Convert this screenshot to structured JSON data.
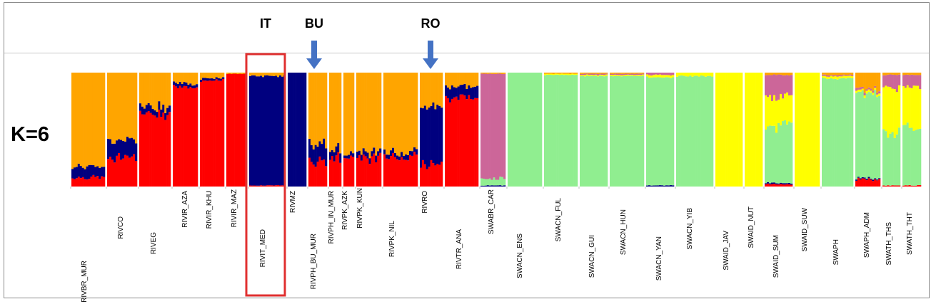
{
  "colors": {
    "orange": "#FFA500",
    "navy": "#00007F",
    "red": "#FF0000",
    "pink": "#CC6699",
    "green": "#90EE90",
    "yellow": "#FFFF00",
    "highlight_box": "#E03030",
    "arrow": "#4472C4"
  },
  "chart_data": {
    "type": "bar",
    "stacked": true,
    "k_label": "K=6",
    "highlights": [
      {
        "label": "IT",
        "population": "RIVIT_MED",
        "marker": "box"
      },
      {
        "label": "BU",
        "population": "RIVPH_BU_MUR",
        "marker": "arrow"
      },
      {
        "label": "RO",
        "population": "RIVRO",
        "marker": "arrow"
      }
    ],
    "cluster_colors": [
      "orange",
      "navy",
      "red",
      "pink",
      "green",
      "yellow"
    ],
    "populations": [
      {
        "name": "RIVBR_MUR",
        "q": [
          0.82,
          0.1,
          0.08,
          0,
          0,
          0
        ]
      },
      {
        "name": "RIVCO",
        "q": [
          0.6,
          0.15,
          0.25,
          0,
          0,
          0
        ]
      },
      {
        "name": "RIVEG",
        "q": [
          0.3,
          0.06,
          0.64,
          0,
          0,
          0
        ]
      },
      {
        "name": "RIVIR_AZA",
        "q": [
          0.1,
          0.03,
          0.87,
          0,
          0,
          0
        ]
      },
      {
        "name": "RIVIR_KHU",
        "q": [
          0.05,
          0.02,
          0.93,
          0,
          0,
          0
        ]
      },
      {
        "name": "RIVIR_MAZ",
        "q": [
          0.01,
          0,
          0.99,
          0,
          0,
          0
        ]
      },
      {
        "name": "RIVIT_MED",
        "q": [
          0.03,
          0.96,
          0.01,
          0,
          0,
          0
        ]
      },
      {
        "name": "RIVMZ",
        "q": [
          0,
          1,
          0,
          0,
          0,
          0
        ]
      },
      {
        "name": "RIVPH_BU_MUR",
        "q": [
          0.62,
          0.17,
          0.21,
          0,
          0,
          0
        ]
      },
      {
        "name": "RIVPH_IN_MUR",
        "q": [
          0.68,
          0.07,
          0.25,
          0,
          0,
          0
        ]
      },
      {
        "name": "RIVPK_AZK",
        "q": [
          0.7,
          0.03,
          0.27,
          0,
          0,
          0
        ]
      },
      {
        "name": "RIVPK_KUN",
        "q": [
          0.7,
          0.05,
          0.25,
          0,
          0,
          0
        ]
      },
      {
        "name": "RIVPK_NIL",
        "q": [
          0.7,
          0.04,
          0.26,
          0,
          0,
          0
        ]
      },
      {
        "name": "RIVRO",
        "q": [
          0.3,
          0.5,
          0.2,
          0,
          0,
          0
        ]
      },
      {
        "name": "RIVTR_ANA",
        "q": [
          0.12,
          0.1,
          0.78,
          0,
          0,
          0
        ]
      },
      {
        "name": "SWABR_CAR",
        "q": [
          0.01,
          0.01,
          0,
          0.92,
          0.06,
          0
        ]
      },
      {
        "name": "SWACN_ENS",
        "q": [
          0,
          0,
          0,
          0,
          1,
          0
        ]
      },
      {
        "name": "SWACN_FUL",
        "q": [
          0.01,
          0,
          0,
          0,
          0.98,
          0.01
        ]
      },
      {
        "name": "SWACN_GUI",
        "q": [
          0.01,
          0,
          0,
          0.01,
          0.97,
          0.01
        ]
      },
      {
        "name": "SWACN_HUN",
        "q": [
          0.01,
          0,
          0,
          0.01,
          0.97,
          0.01
        ]
      },
      {
        "name": "SWACN_YAN",
        "q": [
          0,
          0.01,
          0,
          0.02,
          0.95,
          0.02
        ]
      },
      {
        "name": "SWACN_YIB",
        "q": [
          0,
          0,
          0,
          0,
          0.97,
          0.03
        ]
      },
      {
        "name": "SWAID_JAV",
        "q": [
          0,
          0,
          0,
          0,
          0,
          1
        ]
      },
      {
        "name": "SWAID_NUT",
        "q": [
          0,
          0,
          0,
          0,
          0,
          1
        ]
      },
      {
        "name": "SWAID_SUM",
        "q": [
          0.02,
          0.01,
          0.02,
          0.2,
          0.5,
          0.25
        ]
      },
      {
        "name": "SWAID_SUW",
        "q": [
          0,
          0,
          0,
          0,
          0,
          1
        ]
      },
      {
        "name": "SWAPH",
        "q": [
          0.02,
          0,
          0,
          0.01,
          0.95,
          0.02
        ]
      },
      {
        "name": "SWAPH_ADM",
        "q": [
          0.15,
          0.01,
          0.06,
          0.02,
          0.74,
          0.02
        ]
      },
      {
        "name": "SWATH_THS",
        "q": [
          0.02,
          0,
          0.01,
          0.12,
          0.45,
          0.4
        ]
      },
      {
        "name": "SWATH_THT",
        "q": [
          0.02,
          0,
          0.01,
          0.1,
          0.5,
          0.37
        ]
      }
    ]
  }
}
